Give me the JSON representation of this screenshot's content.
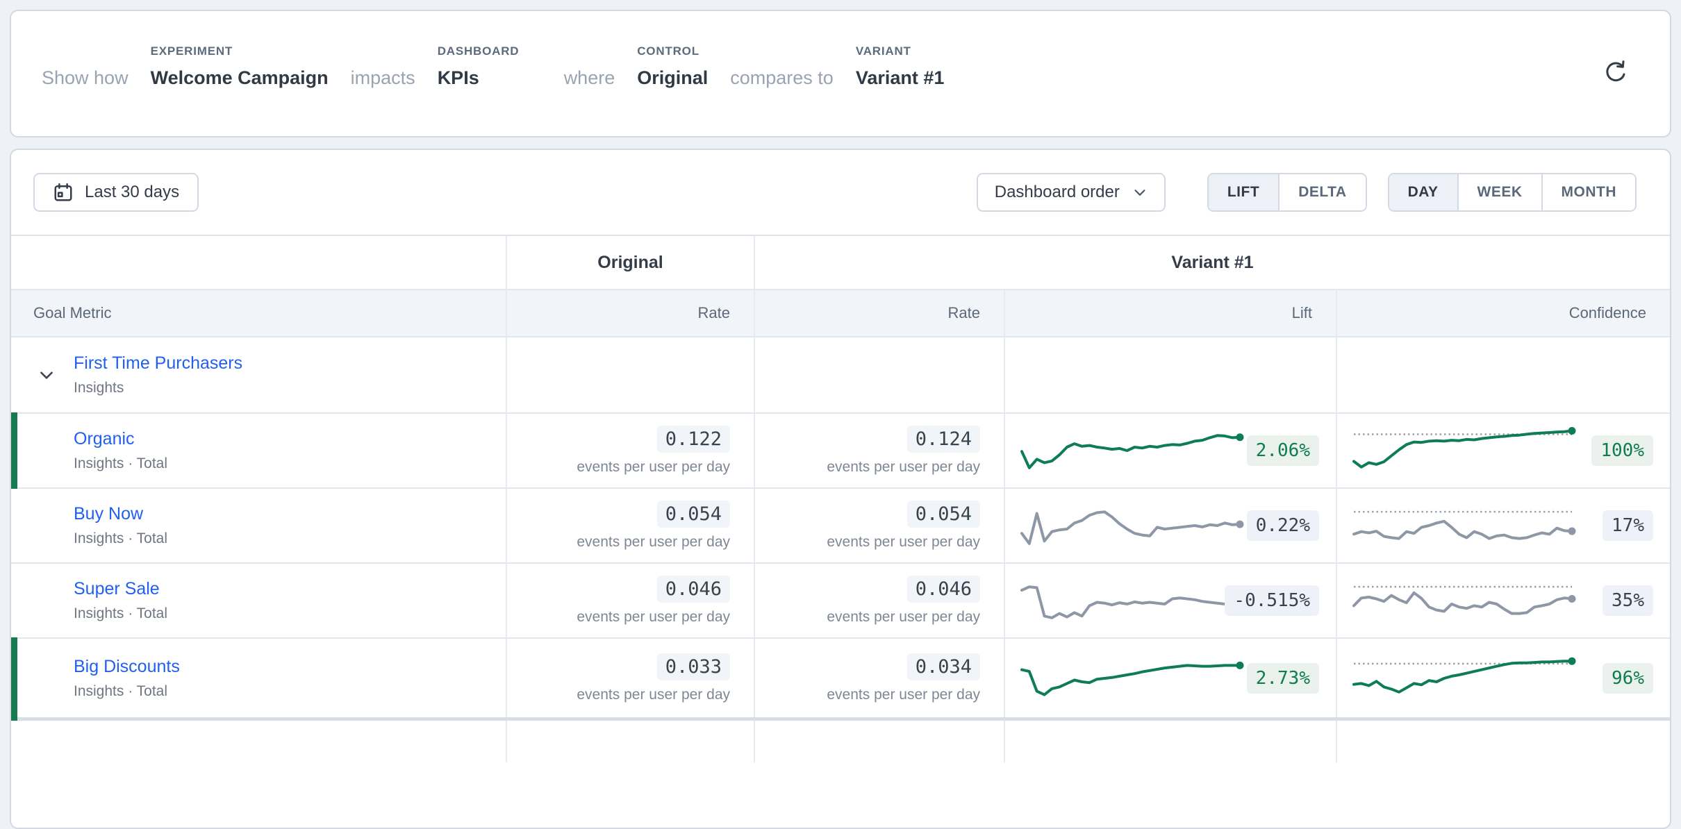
{
  "header": {
    "show_how": "Show how",
    "experiment": {
      "label": "EXPERIMENT",
      "value": "Welcome Campaign"
    },
    "impacts": "impacts",
    "dashboard": {
      "label": "DASHBOARD",
      "value": "KPIs"
    },
    "where": "where",
    "control": {
      "label": "CONTROL",
      "value": "Original"
    },
    "compares_to": "compares to",
    "variant": {
      "label": "VARIANT",
      "value": "Variant #1"
    }
  },
  "toolbar": {
    "date_range_label": "Last 30 days",
    "dashboard_order_label": "Dashboard order",
    "mode_options": [
      "LIFT",
      "DELTA"
    ],
    "mode_selected": "LIFT",
    "granularity_options": [
      "DAY",
      "WEEK",
      "MONTH"
    ],
    "granularity_selected": "DAY"
  },
  "table": {
    "control_header": "Original",
    "variant_header": "Variant #1",
    "columns": {
      "goal_metric": "Goal Metric",
      "control_rate": "Rate",
      "variant_rate": "Rate",
      "lift": "Lift",
      "confidence": "Confidence"
    },
    "group_row": {
      "name": "First Time Purchasers",
      "subtitle": "Insights"
    },
    "rows": [
      {
        "name": "Organic",
        "subtitle": "Insights · Total",
        "control_rate": "0.122",
        "control_unit": "events per user per day",
        "variant_rate": "0.124",
        "variant_unit": "events per user per day",
        "lift": "2.06%",
        "confidence": "100%",
        "significant": true,
        "confidence_threshold": 88,
        "lift_sparkline": [
          48,
          10,
          30,
          22,
          26,
          40,
          58,
          66,
          60,
          62,
          58,
          56,
          53,
          55,
          50,
          58,
          56,
          60,
          58,
          62,
          64,
          63,
          67,
          72,
          74,
          80,
          85,
          84,
          80,
          81
        ],
        "confidence_sparkline": [
          25,
          12,
          22,
          18,
          24,
          38,
          52,
          64,
          70,
          69,
          72,
          73,
          72,
          74,
          73,
          76,
          75,
          78,
          80,
          82,
          83,
          85,
          86,
          88,
          90,
          91,
          92,
          93,
          94,
          96
        ]
      },
      {
        "name": "Buy Now",
        "subtitle": "Insights · Total",
        "control_rate": "0.054",
        "control_unit": "events per user per day",
        "variant_rate": "0.054",
        "variant_unit": "events per user per day",
        "lift": "0.22%",
        "confidence": "17%",
        "significant": false,
        "confidence_threshold": 82,
        "lift_sparkline": [
          32,
          8,
          78,
          14,
          36,
          40,
          42,
          56,
          62,
          74,
          80,
          82,
          70,
          54,
          42,
          32,
          28,
          26,
          46,
          42,
          44,
          46,
          48,
          50,
          47,
          52,
          50,
          56,
          52,
          53
        ],
        "confidence_sparkline": [
          30,
          36,
          33,
          37,
          25,
          22,
          20,
          36,
          32,
          46,
          50,
          56,
          60,
          46,
          30,
          22,
          36,
          30,
          20,
          26,
          28,
          22,
          20,
          22,
          28,
          33,
          30,
          44,
          38,
          37
        ]
      },
      {
        "name": "Super Sale",
        "subtitle": "Insights · Total",
        "control_rate": "0.046",
        "control_unit": "events per user per day",
        "variant_rate": "0.046",
        "variant_unit": "events per user per day",
        "lift": "-0.515%",
        "confidence": "35%",
        "significant": false,
        "confidence_threshold": 82,
        "lift_sparkline": [
          74,
          82,
          80,
          14,
          10,
          20,
          12,
          22,
          14,
          38,
          46,
          44,
          40,
          45,
          42,
          47,
          44,
          46,
          44,
          42,
          54,
          56,
          54,
          52,
          48,
          46,
          44,
          42,
          39,
          41
        ],
        "confidence_sparkline": [
          38,
          56,
          58,
          54,
          48,
          62,
          52,
          45,
          68,
          55,
          35,
          28,
          25,
          42,
          35,
          32,
          38,
          35,
          46,
          42,
          30,
          20,
          20,
          22,
          35,
          38,
          42,
          52,
          56,
          54
        ]
      },
      {
        "name": "Big Discounts",
        "subtitle": "Insights · Total",
        "control_rate": "0.033",
        "control_unit": "events per user per day",
        "variant_rate": "0.034",
        "variant_unit": "events per user per day",
        "lift": "2.73%",
        "confidence": "96%",
        "significant": true,
        "confidence_threshold": 84,
        "lift_sparkline": [
          70,
          66,
          20,
          12,
          26,
          30,
          38,
          46,
          42,
          40,
          48,
          50,
          52,
          55,
          58,
          61,
          65,
          68,
          71,
          74,
          76,
          78,
          80,
          79,
          78,
          78,
          79,
          80,
          80,
          80
        ],
        "confidence_sparkline": [
          36,
          38,
          33,
          43,
          30,
          25,
          18,
          28,
          38,
          35,
          45,
          42,
          50,
          55,
          58,
          62,
          66,
          70,
          74,
          78,
          82,
          85,
          86,
          86,
          87,
          88,
          88,
          89,
          90,
          90
        ]
      }
    ]
  },
  "colors": {
    "positive_green": "#0e7c55",
    "neutral_gray": "#8e97a6",
    "strip_green": "#157a52",
    "link_blue": "#2160ee",
    "threshold_gray": "#9aa1ac",
    "page_background": "#eef1f6"
  }
}
